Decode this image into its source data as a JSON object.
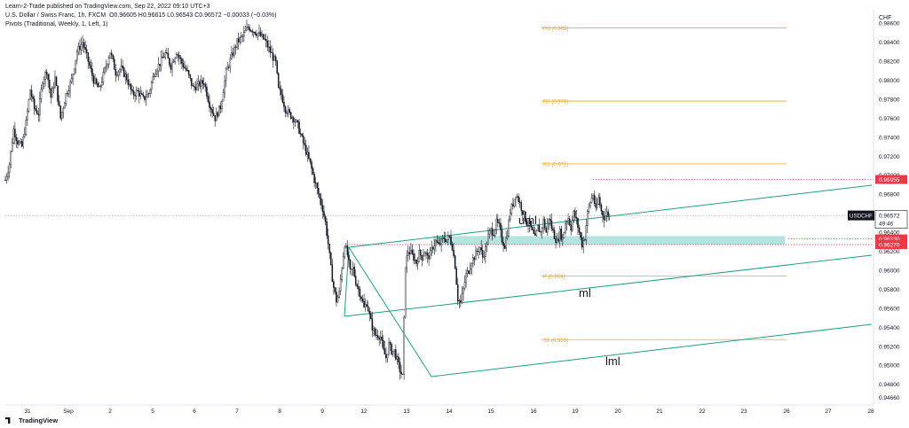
{
  "header": {
    "line1": "Learn-2-Trade published on TradingView.com, Sep 22, 2022 09:10 UTC+3",
    "line2_symbol": "U.S. Dollar / Swiss Franc, 1h, FXCM",
    "line2_ohlc": "O0.96605  H0.96615  L0.96543  C0.96572  −0.00033 (−0.03%)",
    "line3": "Pivots (Traditional, Weekly, 1, Left, 1)"
  },
  "watermark": "TradingView",
  "chart_data": {
    "type": "candlestick",
    "symbol": "USDCHF",
    "currency_label": "CHF",
    "ylim": [
      0.946,
      0.988
    ],
    "y_ticks": [
      0.9466,
      0.948,
      0.95,
      0.952,
      0.954,
      0.956,
      0.958,
      0.96,
      0.962,
      0.964,
      0.966,
      0.968,
      0.97,
      0.972,
      0.974,
      0.976,
      0.978,
      0.98,
      0.982,
      0.984,
      0.986
    ],
    "y_tick_labels": [
      "0.94660",
      "0.94800",
      "0.95000",
      "0.95200",
      "0.95400",
      "0.95600",
      "0.95800",
      "0.96000",
      "0.96200",
      "0.96400",
      "0.96600",
      "0.96800",
      "0.97000",
      "0.97200",
      "0.97400",
      "0.97600",
      "0.97800",
      "0.98000",
      "0.98200",
      "0.98400",
      "0.98600"
    ],
    "x_ticks": [
      "31",
      "Sep",
      "2",
      "5",
      "6",
      "7",
      "8",
      "9",
      "12",
      "13",
      "14",
      "15",
      "16",
      "19",
      "20",
      "21",
      "22",
      "23",
      "26",
      "27",
      "28"
    ],
    "current_price": {
      "symbol": "USDCHF",
      "value": "0.96572",
      "countdown": "49:46"
    },
    "price_markers": [
      {
        "value": "0.96955",
        "color": "#f23645"
      },
      {
        "value": "0.96330",
        "color": "#f23645"
      },
      {
        "value": "0.96270",
        "color": "#f23645"
      }
    ],
    "pivots": [
      {
        "label": "R3 (0.985)",
        "value": 0.9855
      },
      {
        "label": "R2 (0.978)",
        "value": 0.9778
      },
      {
        "label": "R1 (0.971)",
        "value": 0.9712
      },
      {
        "label": "P (0.959)",
        "value": 0.9594
      },
      {
        "label": "S1 (0.953)",
        "value": 0.9527
      }
    ],
    "pitchfork_labels": [
      "uml",
      "ml",
      "lml"
    ],
    "close_path": [
      [
        0,
        0.9695
      ],
      [
        3,
        0.9712
      ],
      [
        6,
        0.9748
      ],
      [
        9,
        0.9735
      ],
      [
        12,
        0.973
      ],
      [
        15,
        0.9755
      ],
      [
        18,
        0.979
      ],
      [
        21,
        0.977
      ],
      [
        24,
        0.9765
      ],
      [
        27,
        0.98
      ],
      [
        30,
        0.981
      ],
      [
        33,
        0.9782
      ],
      [
        36,
        0.9802
      ],
      [
        40,
        0.976
      ],
      [
        44,
        0.9785
      ],
      [
        48,
        0.98
      ],
      [
        52,
        0.983
      ],
      [
        56,
        0.984
      ],
      [
        60,
        0.982
      ],
      [
        64,
        0.98
      ],
      [
        68,
        0.979
      ],
      [
        72,
        0.981
      ],
      [
        76,
        0.983
      ],
      [
        80,
        0.9808
      ],
      [
        84,
        0.9812
      ],
      [
        88,
        0.9802
      ],
      [
        92,
        0.9785
      ],
      [
        96,
        0.9788
      ],
      [
        100,
        0.978
      ],
      [
        104,
        0.9786
      ],
      [
        108,
        0.9808
      ],
      [
        112,
        0.9818
      ],
      [
        116,
        0.9828
      ],
      [
        120,
        0.9815
      ],
      [
        124,
        0.983
      ],
      [
        128,
        0.9818
      ],
      [
        132,
        0.9808
      ],
      [
        136,
        0.9792
      ],
      [
        140,
        0.9795
      ],
      [
        144,
        0.9798
      ],
      [
        148,
        0.9775
      ],
      [
        152,
        0.976
      ],
      [
        156,
        0.9772
      ],
      [
        160,
        0.9808
      ],
      [
        164,
        0.9825
      ],
      [
        168,
        0.984
      ],
      [
        172,
        0.9846
      ],
      [
        176,
        0.9856
      ],
      [
        180,
        0.9852
      ],
      [
        184,
        0.9848
      ],
      [
        188,
        0.9842
      ],
      [
        192,
        0.983
      ],
      [
        196,
        0.9818
      ],
      [
        198,
        0.979
      ],
      [
        200,
        0.9785
      ],
      [
        203,
        0.977
      ],
      [
        206,
        0.9764
      ],
      [
        209,
        0.976
      ],
      [
        212,
        0.9752
      ],
      [
        215,
        0.9738
      ],
      [
        218,
        0.9725
      ],
      [
        221,
        0.9712
      ],
      [
        224,
        0.9695
      ],
      [
        227,
        0.968
      ],
      [
        230,
        0.9665
      ],
      [
        232,
        0.965
      ],
      [
        234,
        0.9628
      ],
      [
        236,
        0.9602
      ],
      [
        238,
        0.9582
      ],
      [
        240,
        0.9568
      ],
      [
        242,
        0.9576
      ],
      [
        244,
        0.9604
      ],
      [
        246,
        0.9628
      ],
      [
        248,
        0.9616
      ],
      [
        250,
        0.9598
      ],
      [
        252,
        0.9602
      ],
      [
        254,
        0.9588
      ],
      [
        256,
        0.958
      ],
      [
        258,
        0.9572
      ],
      [
        260,
        0.956
      ],
      [
        262,
        0.9566
      ],
      [
        264,
        0.9552
      ],
      [
        266,
        0.954
      ],
      [
        268,
        0.9532
      ],
      [
        270,
        0.9532
      ],
      [
        272,
        0.953
      ],
      [
        274,
        0.9515
      ],
      [
        276,
        0.9508
      ],
      [
        278,
        0.9522
      ],
      [
        280,
        0.9515
      ],
      [
        282,
        0.9515
      ],
      [
        284,
        0.9505
      ],
      [
        286,
        0.9495
      ],
      [
        288,
        0.9488
      ],
      [
        290,
        0.9606
      ],
      [
        292,
        0.962
      ],
      [
        294,
        0.9618
      ],
      [
        296,
        0.9613
      ],
      [
        298,
        0.9608
      ],
      [
        300,
        0.9618
      ],
      [
        302,
        0.9614
      ],
      [
        304,
        0.962
      ],
      [
        306,
        0.9613
      ],
      [
        308,
        0.9617
      ],
      [
        310,
        0.9625
      ],
      [
        312,
        0.963
      ],
      [
        314,
        0.9626
      ],
      [
        316,
        0.963
      ],
      [
        318,
        0.9634
      ],
      [
        320,
        0.9632
      ],
      [
        322,
        0.9635
      ],
      [
        324,
        0.9625
      ],
      [
        326,
        0.9605
      ],
      [
        328,
        0.957
      ],
      [
        330,
        0.9566
      ],
      [
        332,
        0.958
      ],
      [
        334,
        0.9595
      ],
      [
        336,
        0.96
      ],
      [
        338,
        0.961
      ],
      [
        340,
        0.9614
      ],
      [
        342,
        0.962
      ],
      [
        344,
        0.9624
      ],
      [
        346,
        0.9614
      ],
      [
        348,
        0.9622
      ],
      [
        350,
        0.9636
      ],
      [
        352,
        0.9642
      ],
      [
        354,
        0.964
      ],
      [
        356,
        0.965
      ],
      [
        358,
        0.9646
      ],
      [
        360,
        0.9632
      ],
      [
        362,
        0.9626
      ],
      [
        364,
        0.964
      ],
      [
        366,
        0.9662
      ],
      [
        368,
        0.967
      ],
      [
        370,
        0.9681
      ],
      [
        372,
        0.9674
      ],
      [
        374,
        0.9666
      ],
      [
        376,
        0.9658
      ],
      [
        378,
        0.965
      ],
      [
        380,
        0.9648
      ],
      [
        382,
        0.964
      ],
      [
        384,
        0.9633
      ],
      [
        386,
        0.9645
      ],
      [
        388,
        0.964
      ],
      [
        390,
        0.9652
      ],
      [
        392,
        0.964
      ],
      [
        394,
        0.9656
      ],
      [
        396,
        0.9645
      ],
      [
        398,
        0.9636
      ],
      [
        400,
        0.963
      ],
      [
        402,
        0.964
      ],
      [
        404,
        0.9633
      ],
      [
        406,
        0.965
      ],
      [
        408,
        0.9655
      ],
      [
        410,
        0.9645
      ],
      [
        412,
        0.966
      ],
      [
        414,
        0.9652
      ],
      [
        416,
        0.964
      ],
      [
        418,
        0.9627
      ],
      [
        420,
        0.9635
      ],
      [
        422,
        0.966
      ],
      [
        424,
        0.9672
      ],
      [
        426,
        0.968
      ],
      [
        428,
        0.9662
      ],
      [
        430,
        0.9676
      ],
      [
        432,
        0.9662
      ],
      [
        434,
        0.9656
      ],
      [
        436,
        0.966
      ],
      [
        438,
        0.9657
      ]
    ]
  }
}
